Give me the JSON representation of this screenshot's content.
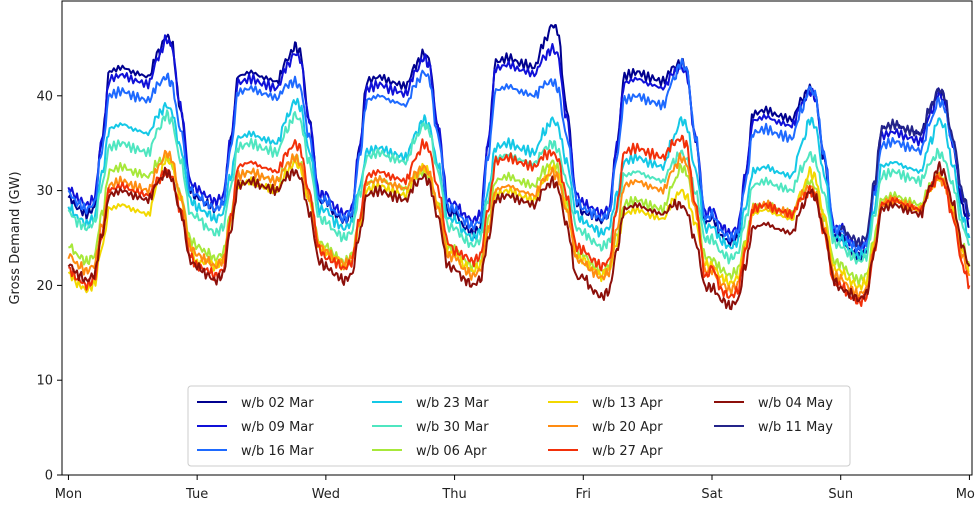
{
  "chart_data": {
    "type": "line",
    "title": "",
    "xlabel": "",
    "ylabel": "Gross Demand (GW)",
    "ylim": [
      0,
      50
    ],
    "yticks": [
      0,
      10,
      20,
      30,
      40
    ],
    "x_tick_labels": [
      "Mon",
      "Tue",
      "Wed",
      "Thu",
      "Fri",
      "Sat",
      "Sun",
      "Mon"
    ],
    "xlim_days": [
      -0.05,
      7.02
    ],
    "x_description": "days from Monday 00:00",
    "legend": "lower-center, 4 columns",
    "grid": false,
    "series": [
      {
        "name": "w/b 02 Mar",
        "color": "#00008f",
        "day_min": [
          27.5,
          28.0,
          26.8,
          25.5,
          26.8,
          24.5,
          23.0
        ],
        "plateau": [
          43,
          42.5,
          42,
          44,
          42.5,
          38.5,
          37
        ],
        "evening_peak": [
          46.3,
          45.2,
          44.5,
          47.5,
          43.5,
          40.8,
          40.6
        ],
        "end_value": 26.2
      },
      {
        "name": "w/b 09 Mar",
        "color": "#1010d8",
        "day_min": [
          28.5,
          28.8,
          27.5,
          26.8,
          27.5,
          25.5,
          24.0
        ],
        "plateau": [
          42.2,
          41.8,
          41.2,
          43.3,
          41.8,
          37.8,
          36.2
        ],
        "evening_peak": [
          46.0,
          44.5,
          44.0,
          45.0,
          43.0,
          40.5,
          40.2
        ],
        "end_value": 27.0
      },
      {
        "name": "w/b 16 Mar",
        "color": "#1e6aff",
        "day_min": [
          28.0,
          28.0,
          27.0,
          26.2,
          27.0,
          25.0,
          23.8
        ],
        "plateau": [
          40.5,
          40.8,
          40.0,
          41.0,
          40.0,
          36.5,
          35.2
        ],
        "evening_peak": [
          42.0,
          41.5,
          42.5,
          41.5,
          43.5,
          40.8,
          39.5
        ],
        "end_value": 27.5
      },
      {
        "name": "w/b 23 Mar",
        "color": "#14c8e6",
        "day_min": [
          26.5,
          27.0,
          26.0,
          25.0,
          25.5,
          24.0,
          23.0
        ],
        "plateau": [
          37.0,
          36.0,
          34.5,
          35.0,
          33.5,
          32.5,
          33.0
        ],
        "evening_peak": [
          39.0,
          39.5,
          37.5,
          37.5,
          37.5,
          37.5,
          37.5
        ],
        "end_value": 25.0
      },
      {
        "name": "w/b 30 Mar",
        "color": "#4fe6c0",
        "day_min": [
          26.0,
          25.5,
          25.0,
          24.2,
          24.0,
          22.8,
          22.5
        ],
        "plateau": [
          35.0,
          35.0,
          34.0,
          33.8,
          32.0,
          31.0,
          32.0
        ],
        "evening_peak": [
          38.0,
          38.0,
          37.0,
          35.0,
          34.0,
          33.8,
          34.0
        ],
        "end_value": 24.2
      },
      {
        "name": "w/b 06 Apr",
        "color": "#a7e83a",
        "day_min": [
          22.5,
          22.8,
          22.5,
          22.0,
          21.5,
          21.0,
          20.5
        ],
        "plateau": [
          32.5,
          32.0,
          31.2,
          31.5,
          29.0,
          28.5,
          29.5
        ],
        "evening_peak": [
          33.5,
          33.5,
          32.0,
          33.0,
          32.5,
          31.0,
          31.8
        ],
        "end_value": 22.0
      },
      {
        "name": "w/b 13 Apr",
        "color": "#f2d800",
        "day_min": [
          19.5,
          22.0,
          22.0,
          21.5,
          21.0,
          20.2,
          19.8
        ],
        "plateau": [
          28.5,
          31.0,
          30.5,
          30.0,
          28.0,
          28.0,
          29.0
        ],
        "evening_peak": [
          33.5,
          33.0,
          32.5,
          32.5,
          30.0,
          32.0,
          31.5
        ],
        "end_value": 21.5
      },
      {
        "name": "w/b 20 Apr",
        "color": "#ff8c12",
        "day_min": [
          21.5,
          22.0,
          22.2,
          21.0,
          20.8,
          19.5,
          19.0
        ],
        "plateau": [
          31.0,
          32.0,
          31.2,
          30.5,
          31.0,
          28.5,
          29.0
        ],
        "evening_peak": [
          34.0,
          33.5,
          32.5,
          32.0,
          33.5,
          30.5,
          31.5
        ],
        "end_value": 21.0
      },
      {
        "name": "w/b 27 Apr",
        "color": "#f2300a",
        "day_min": [
          20.0,
          21.0,
          21.8,
          22.5,
          22.0,
          18.8,
          18.2
        ],
        "plateau": [
          30.5,
          33.0,
          32.0,
          33.5,
          34.5,
          28.5,
          29.0
        ],
        "evening_peak": [
          32.0,
          35.0,
          35.0,
          34.0,
          35.5,
          30.0,
          31.5
        ],
        "end_value": 20.0
      },
      {
        "name": "w/b 04 May",
        "color": "#8c0f0a",
        "day_min": [
          20.5,
          20.5,
          20.5,
          20.0,
          18.8,
          17.8,
          18.5
        ],
        "plateau": [
          30.0,
          31.0,
          30.0,
          29.5,
          28.5,
          26.5,
          28.5
        ],
        "evening_peak": [
          32.0,
          32.0,
          31.5,
          31.0,
          28.5,
          30.0,
          32.5
        ],
        "end_value": 22.0
      },
      {
        "name": "w/b 11 May",
        "color": "#24248a",
        "day_min": [
          null,
          null,
          null,
          null,
          null,
          null,
          24.5
        ],
        "plateau": [
          null,
          null,
          null,
          null,
          null,
          null,
          37.0
        ],
        "evening_peak": [
          null,
          null,
          null,
          null,
          null,
          null,
          40.7
        ],
        "end_value": 27.5
      }
    ]
  }
}
